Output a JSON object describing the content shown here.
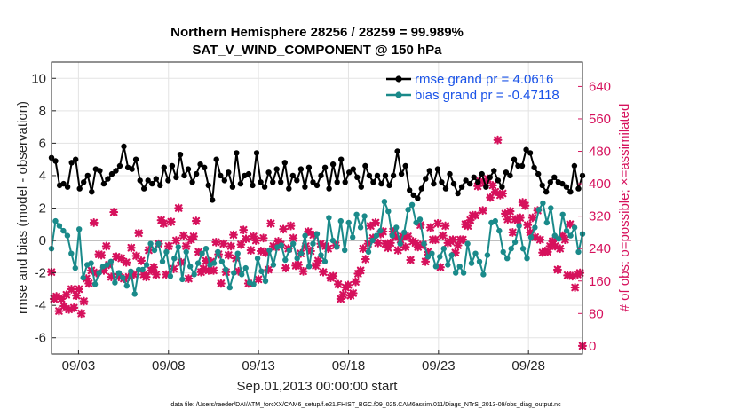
{
  "chart_data": {
    "type": "line",
    "title": "Northern Hemisphere 28256 / 28259 = 99.989%",
    "subtitle": "SAT_V_WIND_COMPONENT @ 150 hPa",
    "xlabel": "Sep.01,2013 00:00:00 start",
    "ylabel": "rmse and bias (model - observation)",
    "y2label": "# of obs: o=possible; ×=assimilated",
    "x_tick_labels": [
      "09/03",
      "09/08",
      "09/13",
      "09/18",
      "09/23",
      "09/28"
    ],
    "x_tick_values": [
      3,
      8,
      13,
      18,
      23,
      28
    ],
    "xlim": [
      1.5,
      31.0
    ],
    "ylim": [
      -7,
      11
    ],
    "y_ticks": [
      -6,
      -4,
      -2,
      0,
      2,
      4,
      6,
      8,
      10
    ],
    "y2lim": [
      -20,
      700
    ],
    "y2_ticks": [
      0,
      80,
      160,
      240,
      320,
      400,
      480,
      560,
      640
    ],
    "grid": true,
    "legend_position": "top-right",
    "series": [
      {
        "name": "rmse grand pr = 4.0616",
        "color": "#000000",
        "marker": "circle",
        "axis": "left",
        "values": [
          5.1,
          4.9,
          3.4,
          3.5,
          3.3,
          4.8,
          5.0,
          3.2,
          3.6,
          4.0,
          3.0,
          4.4,
          4.3,
          3.5,
          3.8,
          4.1,
          4.3,
          4.6,
          5.8,
          4.5,
          4.4,
          5.0,
          3.7,
          3.2,
          3.7,
          3.5,
          3.8,
          3.4,
          4.5,
          3.7,
          4.6,
          3.9,
          5.3,
          4.0,
          4.4,
          3.6,
          4.1,
          4.7,
          4.5,
          3.4,
          2.5,
          5.0,
          4.0,
          3.7,
          4.2,
          3.3,
          5.4,
          3.5,
          4.0,
          4.1,
          3.4,
          5.4,
          3.6,
          3.3,
          4.2,
          3.6,
          4.4,
          3.6,
          4.8,
          3.2,
          4.0,
          3.7,
          4.4,
          3.3,
          4.5,
          3.6,
          3.4,
          4.0,
          4.5,
          3.2,
          4.7,
          3.6,
          5.0,
          3.6,
          4.2,
          4.4,
          3.9,
          3.3,
          4.6,
          4.0,
          3.6,
          4.0,
          3.5,
          4.0,
          3.4,
          4.0,
          5.5,
          4.1,
          4.6,
          3.1,
          2.8,
          2.6,
          3.2,
          3.8,
          4.3,
          3.5,
          4.4,
          3.6,
          3.2,
          4.1,
          3.5,
          2.9,
          3.3,
          3.7,
          3.5,
          3.9,
          3.6,
          4.1,
          3.3,
          3.9,
          4.3,
          3.7,
          3.3,
          4.2,
          4.0,
          5.0,
          4.6,
          4.6,
          5.6,
          5.4,
          4.5,
          4.1,
          3.4,
          3.0,
          3.6,
          3.9,
          3.6,
          3.5,
          3.3,
          3.0,
          4.6,
          3.2,
          4.0
        ]
      },
      {
        "name": "bias grand pr = -0.47118",
        "color": "#1a8a8a",
        "marker": "circle",
        "axis": "left",
        "values": [
          -0.5,
          1.2,
          0.9,
          0.6,
          0.3,
          -0.8,
          -1.7,
          0.7,
          -2.3,
          -1.5,
          -1.4,
          -2.7,
          -2.0,
          -1.6,
          -1.5,
          -1.3,
          -2.6,
          -2.0,
          -2.3,
          -2.8,
          -1.9,
          -3.3,
          -1.8,
          -1.8,
          -1.5,
          -0.2,
          -0.6,
          -0.2,
          -1.3,
          -0.7,
          -2.2,
          -1.1,
          -0.4,
          -2.4,
          -0.7,
          -1.6,
          -2.1,
          -1.4,
          -0.8,
          -0.5,
          -1.5,
          -1.4,
          -0.7,
          -1.3,
          -1.8,
          -2.9,
          -2.0,
          -0.8,
          -2.1,
          -1.7,
          -2.6,
          -2.7,
          -1.1,
          -1.9,
          -2.5,
          -0.6,
          -1.5,
          -0.4,
          -0.3,
          -1.2,
          -0.6,
          -0.2,
          -1.1,
          -0.8,
          0.3,
          -1.6,
          -0.2,
          0.4,
          -0.9,
          -1.3,
          1.4,
          0.0,
          -0.4,
          1.2,
          -0.6,
          1.1,
          0.2,
          1.6,
          0.8,
          1.5,
          -0.7,
          0.0,
          0.3,
          0.6,
          2.4,
          1.8,
          0.3,
          0.8,
          -0.2,
          0.5,
          1.9,
          2.2,
          1.1,
          1.3,
          -0.2,
          -1.0,
          -0.8,
          -1.6,
          -1.0,
          -0.5,
          -1.5,
          -0.9,
          -2.0,
          -1.6,
          -2.0,
          -0.2,
          -1.4,
          -0.8,
          -1.3,
          -2.1,
          -0.9,
          1.1,
          1.2,
          0.6,
          -0.7,
          -1.1,
          -0.5,
          -0.1,
          0.9,
          -0.5,
          -1.1,
          0.2,
          0.8,
          1.9,
          2.3,
          1.1,
          2.0,
          0.3,
          0.1,
          1.6,
          0.6,
          0.3,
          0.8,
          -0.7,
          0.4
        ]
      },
      {
        "name": "assimilated",
        "color": "#d6115c",
        "marker": "x",
        "axis": "right",
        "values": [
          182,
          116,
          122,
          86,
          116,
          98,
          126,
          90,
          140,
          94,
          124,
          140,
          80,
          110,
          166,
          154,
          186,
          304,
          180,
          226,
          224,
          186,
          246,
          200,
          170,
          330,
          220,
          170,
          216,
          166,
          206,
          170,
          242,
          176,
          222,
          278,
          210,
          176,
          170,
          236,
          186,
          194,
          176,
          252,
          310,
          302,
          176,
          246,
          306,
          190,
          260,
          340,
          206,
          272,
          246,
          166,
          262,
          270,
          308,
          232,
          182,
          190,
          210,
          186,
          208,
          186,
          256,
          226,
          154,
          252,
          182,
          224,
          246,
          274,
          216,
          184,
          250,
          286,
          264,
          154,
          236,
          270,
          260,
          164,
          234,
          266,
          230,
          188,
          302,
          246,
          244,
          258,
          250,
          288,
          192,
          240,
          296,
          266,
          198,
          200,
          228,
          184,
          246,
          282,
          234,
          274,
          198,
          210,
          252,
          182,
          246,
          240,
          168,
          172,
          248,
          152,
          116,
          126,
          144,
          150,
          124,
          130,
          158,
          178,
          186,
          240,
          214,
          252,
          296,
          266,
          304,
          254,
          276,
          282,
          252,
          242,
          254,
          282,
          270,
          236,
          262,
          270,
          244,
          270,
          212,
          258,
          254,
          244,
          298,
          250,
          208,
          232,
          292,
          262,
          262,
          302,
          194,
          272,
          296,
          254,
          258,
          262,
          230,
          248,
          262,
          262,
          300,
          296,
          310,
          322,
          322,
          394,
          406,
          334,
          402,
          412,
          366,
          396,
          380,
          508,
          372,
          376,
          326,
          312,
          332,
          280,
          312,
          310,
          316,
          354,
          346,
          298,
          280,
          316,
          268,
          334,
          262,
          230,
          234,
          232,
          246,
          258,
          246,
          188,
          240,
          272,
          262,
          174,
          300,
          172,
          144,
          176,
          180,
          0
        ]
      }
    ]
  },
  "footer": {
    "data_file": "data file: /Users/raeder/DAI/ATM_forcXX/CAM6_setup/f.e21.FHIST_BGC.f09_025.CAM6assim.011/Diags_NTrS_2013-09/obs_diag_output.nc"
  }
}
